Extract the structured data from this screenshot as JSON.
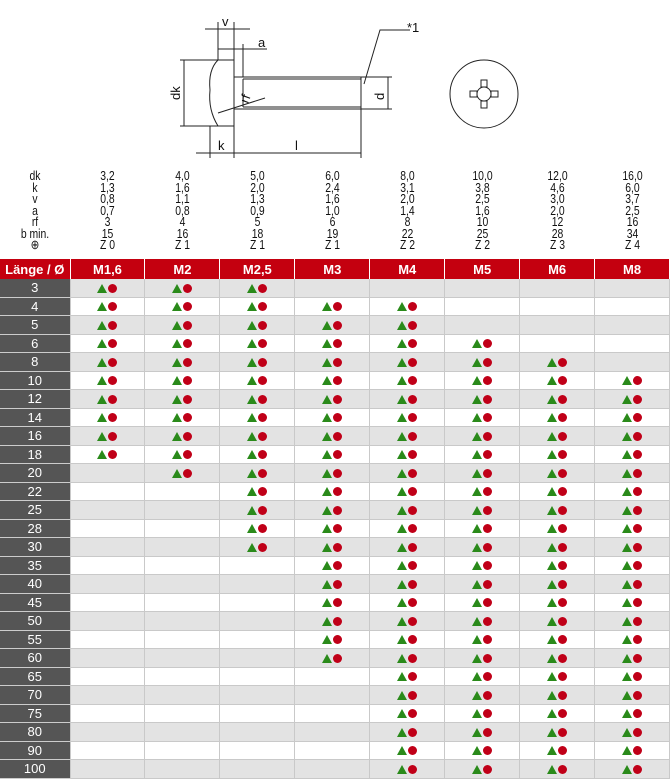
{
  "drawing": {
    "labels": {
      "v": "v",
      "a": "a",
      "dk": "dk",
      "rf": "rf",
      "d": "d",
      "k": "k",
      "l": "l",
      "note": "*1"
    },
    "icon": "pozidriv-recess-icon"
  },
  "spec": {
    "columns": [
      "M1,6",
      "M2",
      "M2,5",
      "M3",
      "M4",
      "M5",
      "M6",
      "M8"
    ],
    "rows": [
      {
        "label": "dk",
        "values": [
          "3,2",
          "4,0",
          "5,0",
          "6,0",
          "8,0",
          "10,0",
          "12,0",
          "16,0"
        ]
      },
      {
        "label": "k",
        "values": [
          "1,3",
          "1,6",
          "2,0",
          "2,4",
          "3,1",
          "3,8",
          "4,6",
          "6,0"
        ]
      },
      {
        "label": "v",
        "values": [
          "0,8",
          "1,1",
          "1,3",
          "1,6",
          "2,0",
          "2,5",
          "3,0",
          "3,7"
        ]
      },
      {
        "label": "a",
        "values": [
          "0,7",
          "0,8",
          "0,9",
          "1,0",
          "1,4",
          "1,6",
          "2,0",
          "2,5"
        ]
      },
      {
        "label": "rf",
        "values": [
          "3",
          "4",
          "5",
          "6",
          "8",
          "10",
          "12",
          "16"
        ]
      },
      {
        "label": "b min.",
        "values": [
          "15",
          "16",
          "18",
          "19",
          "22",
          "25",
          "28",
          "34"
        ]
      },
      {
        "label": "⊕",
        "values": [
          "Z 0",
          "Z 1",
          "Z 1",
          "Z 1",
          "Z 2",
          "Z 2",
          "Z 3",
          "Z 4"
        ]
      }
    ]
  },
  "table": {
    "corner_label": "Länge / Ø",
    "marks": {
      "triangle_color": "#2a8a1a",
      "circle_color": "#c00018"
    },
    "header_color": "#c4000f",
    "rows": [
      {
        "length": "3",
        "avail": [
          1,
          1,
          1,
          0,
          0,
          0,
          0,
          0
        ]
      },
      {
        "length": "4",
        "avail": [
          1,
          1,
          1,
          1,
          1,
          0,
          0,
          0
        ]
      },
      {
        "length": "5",
        "avail": [
          1,
          1,
          1,
          1,
          1,
          0,
          0,
          0
        ]
      },
      {
        "length": "6",
        "avail": [
          1,
          1,
          1,
          1,
          1,
          1,
          0,
          0
        ]
      },
      {
        "length": "8",
        "avail": [
          1,
          1,
          1,
          1,
          1,
          1,
          1,
          0
        ]
      },
      {
        "length": "10",
        "avail": [
          1,
          1,
          1,
          1,
          1,
          1,
          1,
          1
        ]
      },
      {
        "length": "12",
        "avail": [
          1,
          1,
          1,
          1,
          1,
          1,
          1,
          1
        ]
      },
      {
        "length": "14",
        "avail": [
          1,
          1,
          1,
          1,
          1,
          1,
          1,
          1
        ]
      },
      {
        "length": "16",
        "avail": [
          1,
          1,
          1,
          1,
          1,
          1,
          1,
          1
        ]
      },
      {
        "length": "18",
        "avail": [
          1,
          1,
          1,
          1,
          1,
          1,
          1,
          1
        ]
      },
      {
        "length": "20",
        "avail": [
          0,
          1,
          1,
          1,
          1,
          1,
          1,
          1
        ]
      },
      {
        "length": "22",
        "avail": [
          0,
          0,
          1,
          1,
          1,
          1,
          1,
          1
        ]
      },
      {
        "length": "25",
        "avail": [
          0,
          0,
          1,
          1,
          1,
          1,
          1,
          1
        ]
      },
      {
        "length": "28",
        "avail": [
          0,
          0,
          1,
          1,
          1,
          1,
          1,
          1
        ]
      },
      {
        "length": "30",
        "avail": [
          0,
          0,
          1,
          1,
          1,
          1,
          1,
          1
        ]
      },
      {
        "length": "35",
        "avail": [
          0,
          0,
          0,
          1,
          1,
          1,
          1,
          1
        ]
      },
      {
        "length": "40",
        "avail": [
          0,
          0,
          0,
          1,
          1,
          1,
          1,
          1
        ]
      },
      {
        "length": "45",
        "avail": [
          0,
          0,
          0,
          1,
          1,
          1,
          1,
          1
        ]
      },
      {
        "length": "50",
        "avail": [
          0,
          0,
          0,
          1,
          1,
          1,
          1,
          1
        ]
      },
      {
        "length": "55",
        "avail": [
          0,
          0,
          0,
          1,
          1,
          1,
          1,
          1
        ]
      },
      {
        "length": "60",
        "avail": [
          0,
          0,
          0,
          1,
          1,
          1,
          1,
          1
        ]
      },
      {
        "length": "65",
        "avail": [
          0,
          0,
          0,
          0,
          1,
          1,
          1,
          1
        ]
      },
      {
        "length": "70",
        "avail": [
          0,
          0,
          0,
          0,
          1,
          1,
          1,
          1
        ]
      },
      {
        "length": "75",
        "avail": [
          0,
          0,
          0,
          0,
          1,
          1,
          1,
          1
        ]
      },
      {
        "length": "80",
        "avail": [
          0,
          0,
          0,
          0,
          1,
          1,
          1,
          1
        ]
      },
      {
        "length": "90",
        "avail": [
          0,
          0,
          0,
          0,
          1,
          1,
          1,
          1
        ]
      },
      {
        "length": "100",
        "avail": [
          0,
          0,
          0,
          0,
          1,
          1,
          1,
          1
        ]
      }
    ]
  }
}
